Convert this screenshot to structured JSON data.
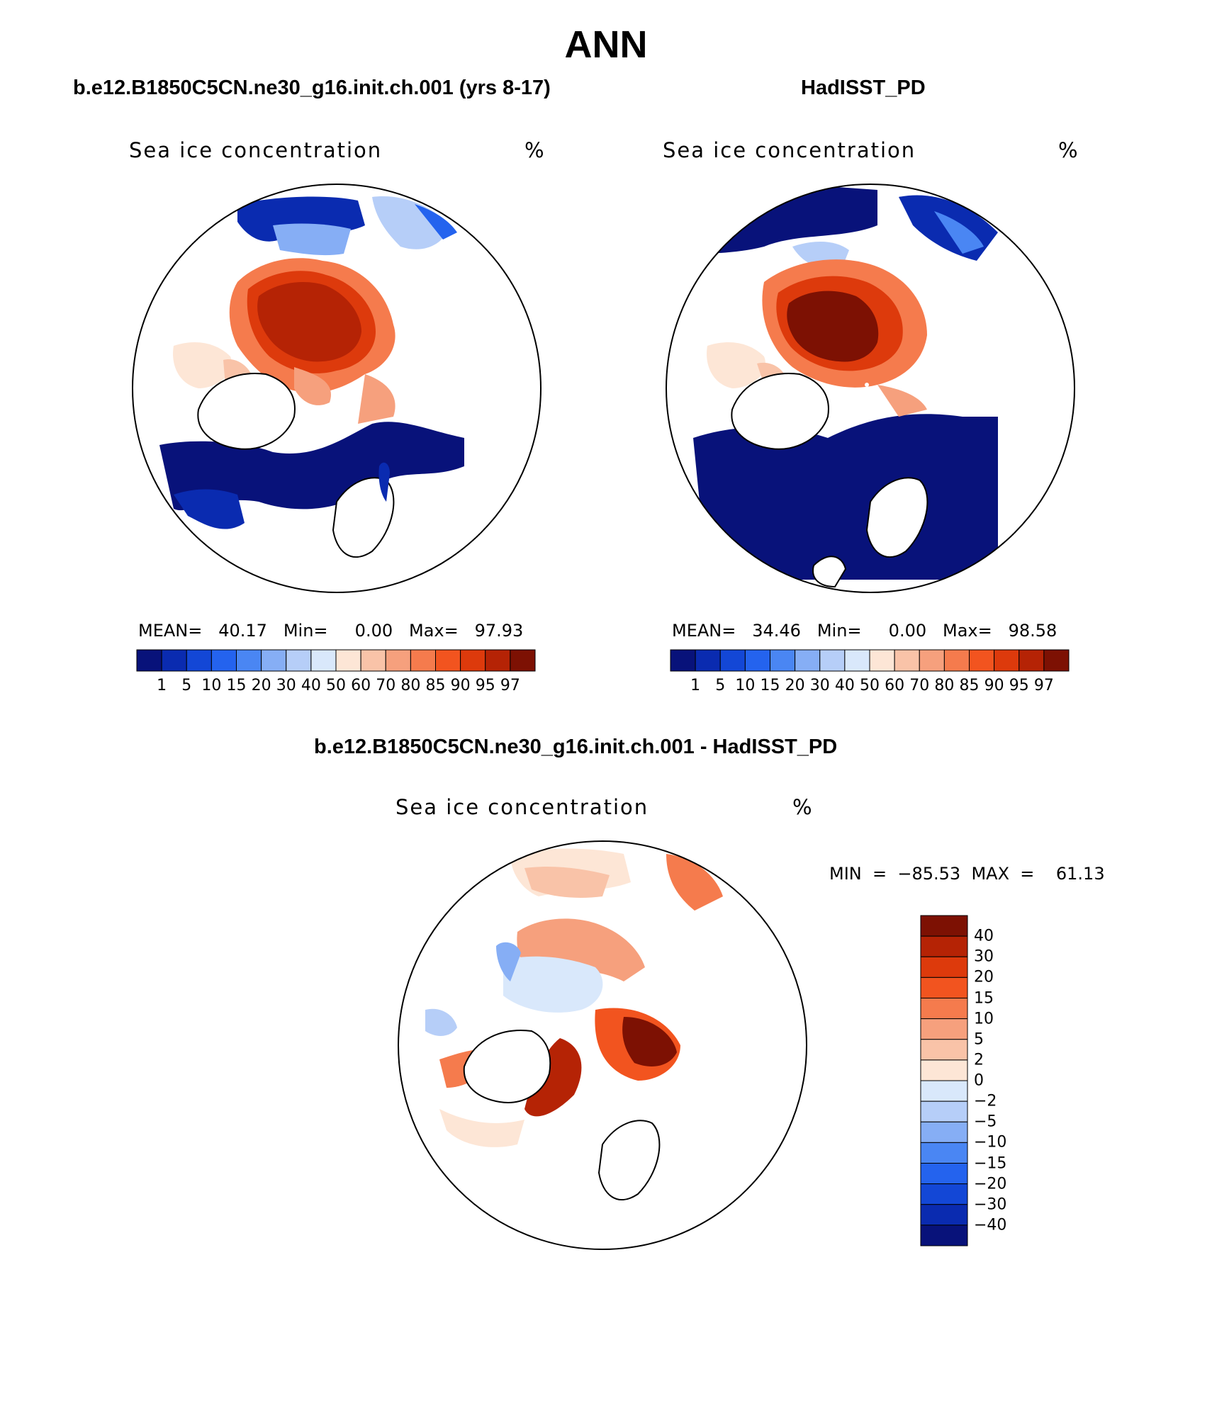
{
  "title": "ANN",
  "panels": [
    {
      "title": "b.e12.B1850C5CN.ne30_g16.init.ch.001 (yrs 8-17)",
      "variable": "Sea ice concentration",
      "units": "%",
      "stats": "MEAN=   40.17   Min=     0.00   Max=   97.93"
    },
    {
      "title": "HadISST_PD",
      "variable": "Sea ice concentration",
      "units": "%",
      "stats": "MEAN=   34.46   Min=     0.00   Max=   98.58"
    }
  ],
  "diff": {
    "title": "b.e12.B1850C5CN.ne30_g16.init.ch.001 - HadISST_PD",
    "variable": "Sea ice concentration",
    "units": "%",
    "minmax": "MIN  =  −85.53  MAX  =    61.13"
  },
  "colorbar_levels": [
    "1",
    "5",
    "10",
    "15",
    "20",
    "30",
    "40",
    "50",
    "60",
    "70",
    "80",
    "85",
    "90",
    "95",
    "97"
  ],
  "colorbar_colors": [
    "#08127a",
    "#0a2bb0",
    "#1347d6",
    "#2463ee",
    "#4a86f3",
    "#86aef5",
    "#b6cef8",
    "#d9e8fb",
    "#fde6d6",
    "#f9c3a8",
    "#f6a07d",
    "#f57b4d",
    "#f2541f",
    "#dd3a0c",
    "#b52305",
    "#7d1103"
  ],
  "diff_levels": [
    "40",
    "30",
    "20",
    "15",
    "10",
    "5",
    "2",
    "0",
    "−2",
    "−5",
    "−10",
    "−15",
    "−20",
    "−30",
    "−40"
  ],
  "diff_colors": [
    "#7d1103",
    "#b52305",
    "#dd3a0c",
    "#f2541f",
    "#f57b4d",
    "#f6a07d",
    "#f9c3a8",
    "#fde6d6",
    "#d9e8fb",
    "#b6cef8",
    "#86aef5",
    "#4a86f3",
    "#2463ee",
    "#1347d6",
    "#0a2bb0",
    "#08127a"
  ]
}
